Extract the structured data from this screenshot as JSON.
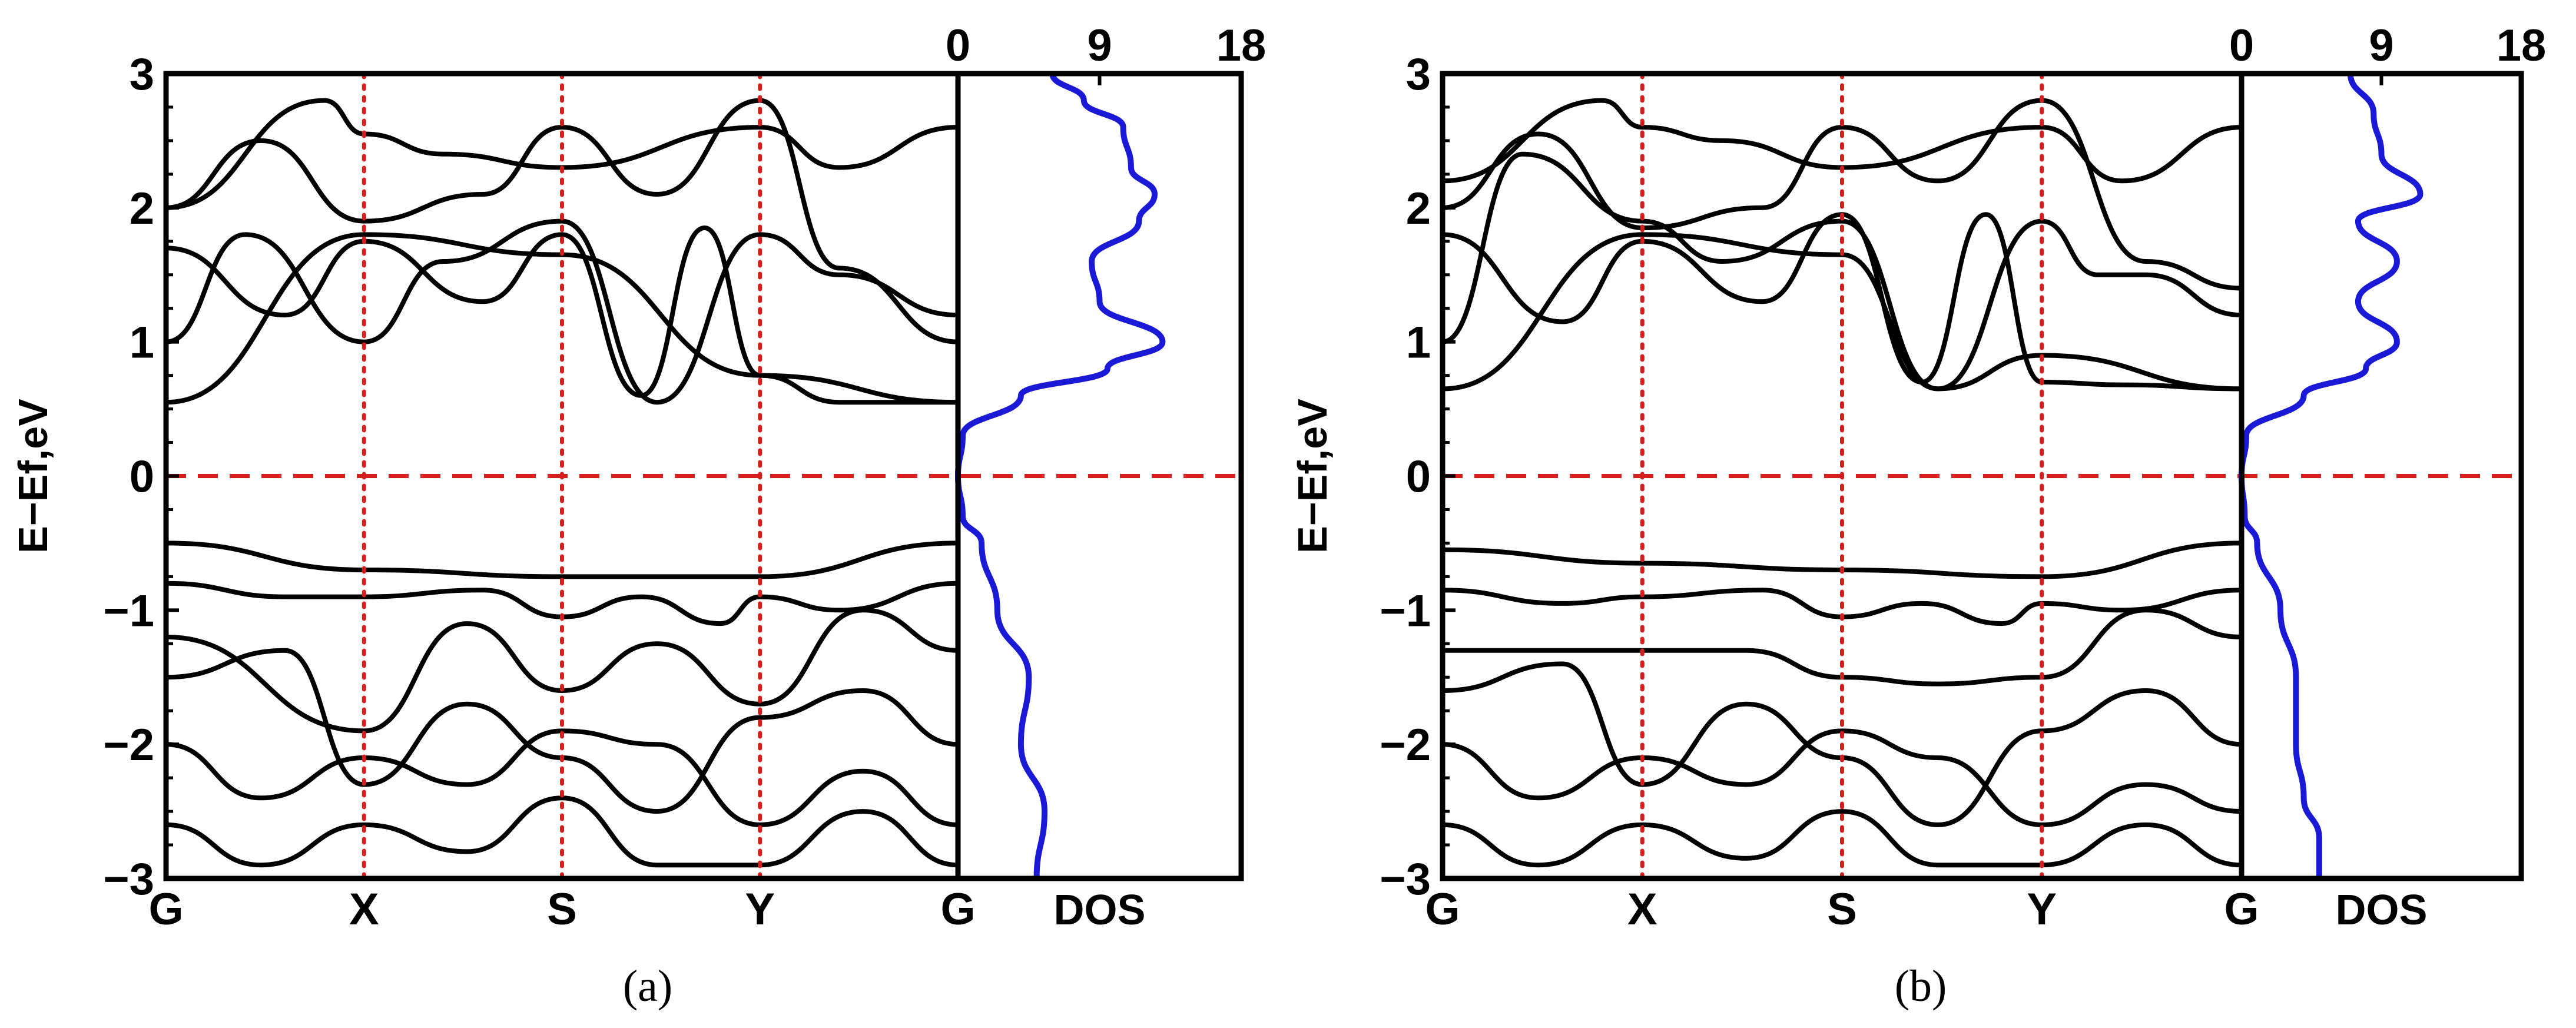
{
  "colors": {
    "bands": "#000000",
    "dos": "#1a1ad6",
    "guides": "#d41f1f",
    "frame": "#000000"
  },
  "panels": [
    {
      "label": "(a)",
      "letter": "a"
    },
    {
      "label": "(b)",
      "letter": "b"
    }
  ],
  "chart_data": [
    {
      "type": "line",
      "panel": "(a)",
      "title": "",
      "ylabel": "E−Ef,eV",
      "ylim": [
        -3,
        3
      ],
      "yticks": [
        "3",
        "2",
        "1",
        "0",
        "−1",
        "−2",
        "−3"
      ],
      "band_xlabels": [
        "G",
        "X",
        "S",
        "Y",
        "G"
      ],
      "dos_xlabel": "DOS",
      "dos_xticks": [
        "0",
        "9",
        "18"
      ],
      "dos_xlim": [
        0,
        18
      ],
      "fermi_level": 0,
      "grid": false,
      "band_series": [
        {
          "x": [
            0,
            0.25,
            0.5,
            0.75,
            1.0
          ],
          "y": [
            0.55,
            1.8,
            1.65,
            0.75,
            0.55
          ]
        },
        {
          "x": [
            0,
            0.15,
            0.25,
            0.4,
            0.5,
            0.6,
            0.68,
            0.75,
            0.85,
            1.0
          ],
          "y": [
            1.7,
            1.2,
            1.75,
            1.3,
            1.8,
            0.6,
            1.85,
            0.75,
            0.55,
            0.55
          ]
        },
        {
          "x": [
            0,
            0.1,
            0.25,
            0.35,
            0.5,
            0.62,
            0.75,
            0.85,
            1.0
          ],
          "y": [
            1.0,
            1.8,
            1.0,
            1.6,
            1.9,
            0.55,
            1.8,
            1.5,
            1.2
          ]
        },
        {
          "x": [
            0,
            0.12,
            0.25,
            0.4,
            0.5,
            0.62,
            0.75,
            0.85,
            1.0
          ],
          "y": [
            2.0,
            2.5,
            1.9,
            2.1,
            2.6,
            2.1,
            2.8,
            1.55,
            1.0
          ]
        },
        {
          "x": [
            0,
            0.2,
            0.25,
            0.35,
            0.5,
            0.75,
            0.85,
            1.0
          ],
          "y": [
            2.0,
            2.8,
            2.55,
            2.4,
            2.3,
            2.6,
            2.3,
            2.6
          ]
        },
        {
          "x": [
            0,
            0.25,
            0.5,
            0.75,
            1.0
          ],
          "y": [
            -0.5,
            -0.7,
            -0.75,
            -0.75,
            -0.5
          ]
        },
        {
          "x": [
            0,
            0.15,
            0.25,
            0.4,
            0.5,
            0.6,
            0.7,
            0.75,
            0.85,
            1.0
          ],
          "y": [
            -0.8,
            -0.9,
            -0.9,
            -0.85,
            -1.05,
            -0.9,
            -1.1,
            -0.9,
            -1.0,
            -0.8
          ]
        },
        {
          "x": [
            0,
            0.25,
            0.38,
            0.5,
            0.62,
            0.75,
            0.88,
            1.0
          ],
          "y": [
            -1.2,
            -1.9,
            -1.1,
            -1.6,
            -1.25,
            -1.7,
            -1.0,
            -1.3
          ]
        },
        {
          "x": [
            0,
            0.15,
            0.25,
            0.38,
            0.5,
            0.62,
            0.75,
            0.88,
            1.0
          ],
          "y": [
            -1.5,
            -1.3,
            -2.3,
            -1.7,
            -2.1,
            -2.5,
            -1.8,
            -1.6,
            -2.0
          ]
        },
        {
          "x": [
            0,
            0.12,
            0.25,
            0.38,
            0.5,
            0.62,
            0.75,
            0.88,
            1.0
          ],
          "y": [
            -2.0,
            -2.4,
            -2.1,
            -2.3,
            -1.9,
            -2.0,
            -2.6,
            -2.2,
            -2.6
          ]
        },
        {
          "x": [
            0,
            0.12,
            0.25,
            0.38,
            0.5,
            0.62,
            0.75,
            0.88,
            1.0
          ],
          "y": [
            -2.6,
            -2.9,
            -2.6,
            -2.8,
            -2.4,
            -2.9,
            -2.9,
            -2.5,
            -2.9
          ]
        }
      ],
      "dos_curve": {
        "energy": [
          -3.0,
          -2.5,
          -2.0,
          -1.5,
          -1.0,
          -0.5,
          -0.3,
          0.0,
          0.3,
          0.6,
          0.8,
          1.0,
          1.3,
          1.6,
          1.9,
          2.1,
          2.3,
          2.6,
          2.8,
          3.0
        ],
        "dos": [
          5.0,
          5.5,
          4.0,
          4.5,
          2.5,
          1.5,
          0.3,
          0.0,
          0.3,
          4.0,
          9.5,
          13.0,
          9.0,
          8.5,
          11.5,
          12.5,
          11.0,
          10.5,
          8.0,
          6.0
        ]
      }
    },
    {
      "type": "line",
      "panel": "(b)",
      "title": "",
      "ylabel": "E−Ef,eV",
      "ylim": [
        -3,
        3
      ],
      "yticks": [
        "3",
        "2",
        "1",
        "0",
        "−1",
        "−2",
        "−3"
      ],
      "band_xlabels": [
        "G",
        "X",
        "S",
        "Y",
        "G"
      ],
      "dos_xlabel": "DOS",
      "dos_xticks": [
        "0",
        "9",
        "18"
      ],
      "dos_xlim": [
        0,
        18
      ],
      "fermi_level": 0,
      "grid": false,
      "band_series": [
        {
          "x": [
            0,
            0.25,
            0.5,
            0.62,
            0.75,
            1.0
          ],
          "y": [
            0.65,
            1.8,
            1.65,
            0.65,
            0.9,
            0.65
          ]
        },
        {
          "x": [
            0,
            0.15,
            0.25,
            0.4,
            0.5,
            0.6,
            0.68,
            0.75,
            0.85,
            1.0
          ],
          "y": [
            1.8,
            1.15,
            1.75,
            1.3,
            1.95,
            0.7,
            1.95,
            0.7,
            0.68,
            0.65
          ]
        },
        {
          "x": [
            0,
            0.1,
            0.25,
            0.35,
            0.5,
            0.62,
            0.75,
            0.82,
            0.88,
            1.0
          ],
          "y": [
            1.0,
            2.4,
            1.9,
            1.6,
            1.9,
            0.65,
            1.9,
            1.5,
            1.5,
            1.2
          ]
        },
        {
          "x": [
            0,
            0.12,
            0.25,
            0.4,
            0.5,
            0.62,
            0.75,
            0.88,
            1.0
          ],
          "y": [
            2.0,
            2.55,
            1.85,
            2.0,
            2.6,
            2.2,
            2.8,
            1.6,
            1.4
          ]
        },
        {
          "x": [
            0,
            0.2,
            0.25,
            0.35,
            0.5,
            0.75,
            0.85,
            1.0
          ],
          "y": [
            2.2,
            2.8,
            2.6,
            2.5,
            2.3,
            2.6,
            2.2,
            2.6
          ]
        },
        {
          "x": [
            0,
            0.25,
            0.5,
            0.75,
            1.0
          ],
          "y": [
            -0.55,
            -0.65,
            -0.7,
            -0.75,
            -0.5
          ]
        },
        {
          "x": [
            0,
            0.15,
            0.25,
            0.4,
            0.5,
            0.6,
            0.7,
            0.75,
            0.85,
            1.0
          ],
          "y": [
            -0.85,
            -0.95,
            -0.9,
            -0.85,
            -1.05,
            -0.95,
            -1.1,
            -0.95,
            -1.0,
            -0.85
          ]
        },
        {
          "x": [
            0,
            0.25,
            0.38,
            0.5,
            0.62,
            0.75,
            0.88,
            1.0
          ],
          "y": [
            -1.3,
            -1.3,
            -1.3,
            -1.5,
            -1.55,
            -1.5,
            -1.0,
            -1.2
          ]
        },
        {
          "x": [
            0,
            0.15,
            0.25,
            0.38,
            0.5,
            0.62,
            0.75,
            0.88,
            1.0
          ],
          "y": [
            -1.6,
            -1.4,
            -2.3,
            -1.7,
            -2.1,
            -2.6,
            -1.9,
            -1.6,
            -2.0
          ]
        },
        {
          "x": [
            0,
            0.12,
            0.25,
            0.38,
            0.5,
            0.62,
            0.75,
            0.88,
            1.0
          ],
          "y": [
            -2.0,
            -2.4,
            -2.1,
            -2.3,
            -1.9,
            -2.1,
            -2.6,
            -2.3,
            -2.5
          ]
        },
        {
          "x": [
            0,
            0.12,
            0.25,
            0.38,
            0.5,
            0.62,
            0.75,
            0.88,
            1.0
          ],
          "y": [
            -2.6,
            -2.9,
            -2.6,
            -2.85,
            -2.5,
            -2.9,
            -2.9,
            -2.6,
            -2.9
          ]
        }
      ],
      "dos_curve": {
        "energy": [
          -3.0,
          -2.7,
          -2.4,
          -2.0,
          -1.5,
          -1.0,
          -0.5,
          -0.3,
          0.0,
          0.3,
          0.6,
          0.8,
          1.0,
          1.3,
          1.6,
          1.9,
          2.1,
          2.4,
          2.7,
          3.0
        ],
        "dos": [
          5.0,
          5.0,
          4.0,
          3.5,
          3.5,
          2.5,
          1.0,
          0.2,
          0.0,
          0.3,
          4.0,
          8.0,
          10.0,
          7.5,
          10.0,
          7.5,
          11.5,
          9.0,
          8.5,
          7.0
        ]
      }
    }
  ]
}
